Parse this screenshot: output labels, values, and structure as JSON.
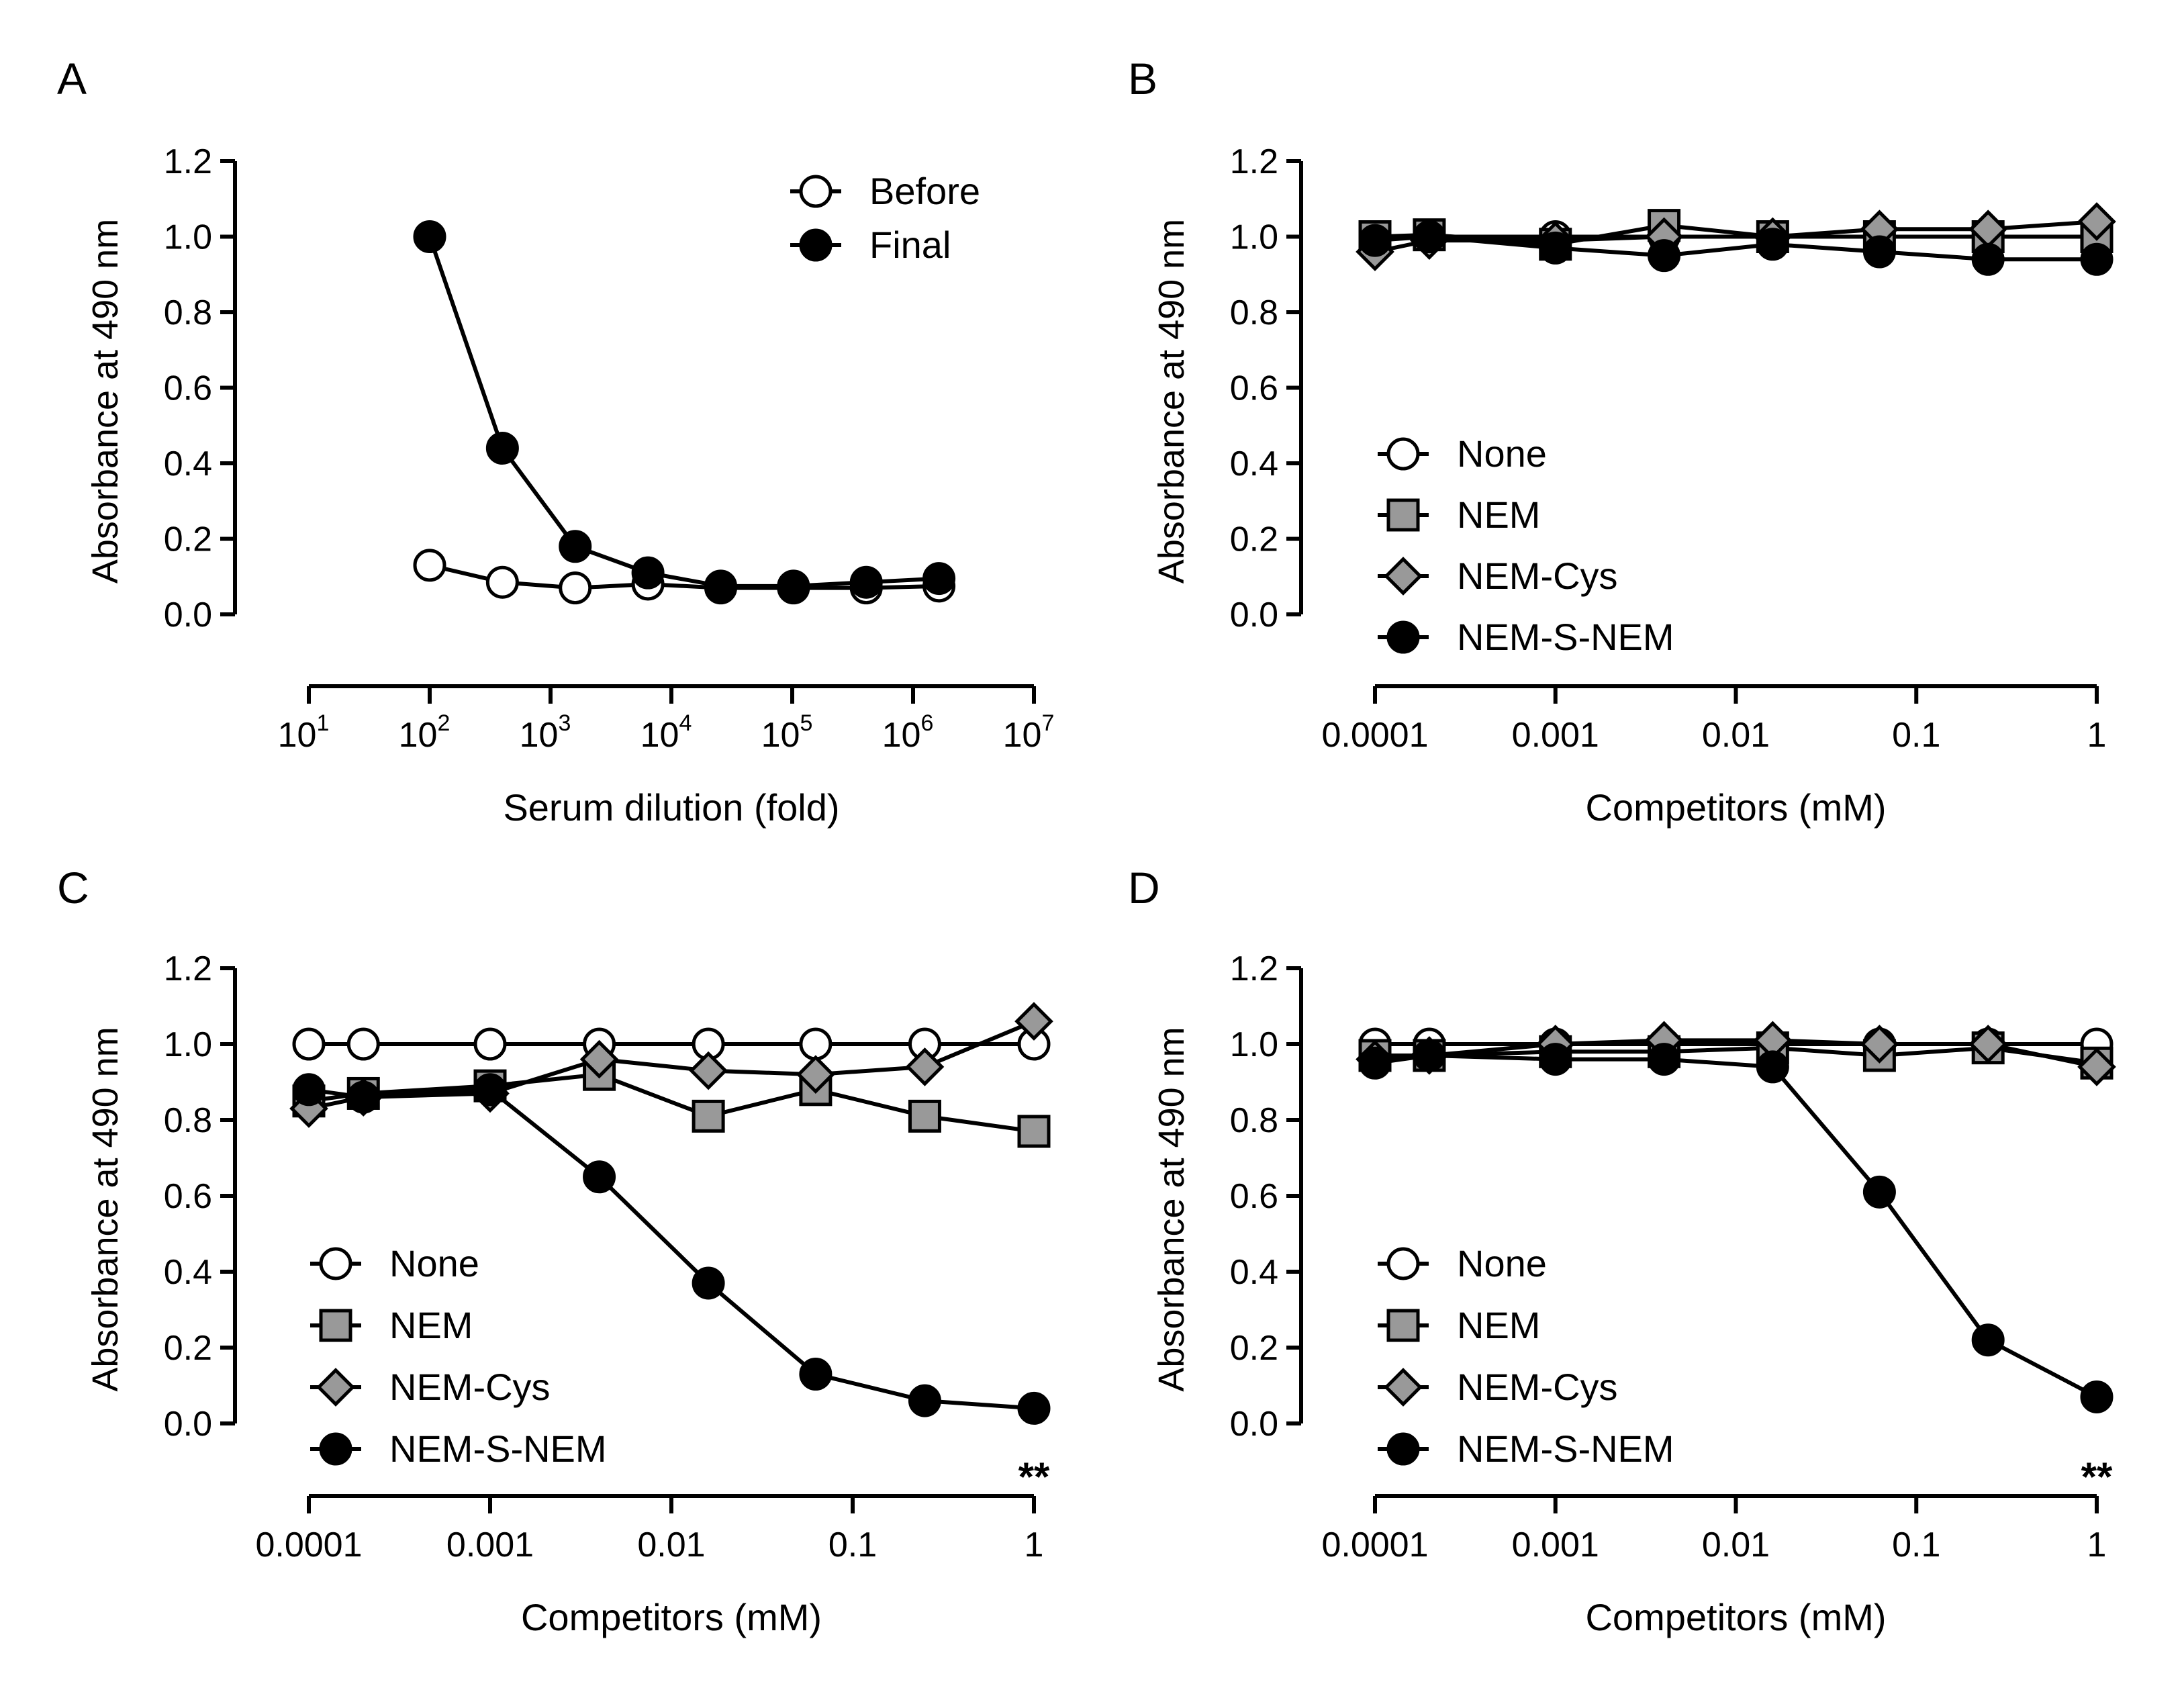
{
  "chart_data": [
    {
      "panel_label": "A",
      "type": "line",
      "xscale": "log",
      "xlabel": "Serum dilution (fold)",
      "ylabel": "Absorbance at 490 nm",
      "xlim": [
        10,
        10000000
      ],
      "ylim": [
        0,
        1.2
      ],
      "xticks": [
        {
          "value": 10,
          "base": "10",
          "exp": "1"
        },
        {
          "value": 100,
          "base": "10",
          "exp": "2"
        },
        {
          "value": 1000,
          "base": "10",
          "exp": "3"
        },
        {
          "value": 10000,
          "base": "10",
          "exp": "4"
        },
        {
          "value": 100000,
          "base": "10",
          "exp": "5"
        },
        {
          "value": 1000000,
          "base": "10",
          "exp": "6"
        },
        {
          "value": 10000000,
          "base": "10",
          "exp": "7"
        }
      ],
      "yticks": [
        "0.0",
        "0.2",
        "0.4",
        "0.6",
        "0.8",
        "1.0",
        "1.2"
      ],
      "legend_position": "top-right",
      "series": [
        {
          "name": "Before",
          "marker": "circle",
          "fill": "#ffffff",
          "x": [
            100,
            400,
            1600,
            6400,
            25600,
            102400,
            409600,
            1638400
          ],
          "y": [
            0.13,
            0.085,
            0.07,
            0.08,
            0.07,
            0.07,
            0.07,
            0.075
          ]
        },
        {
          "name": "Final",
          "marker": "circle",
          "fill": "#000000",
          "x": [
            100,
            400,
            1600,
            6400,
            25600,
            102400,
            409600,
            1638400
          ],
          "y": [
            1.0,
            0.44,
            0.18,
            0.11,
            0.075,
            0.075,
            0.085,
            0.095
          ]
        }
      ]
    },
    {
      "panel_label": "B",
      "type": "line",
      "xscale": "log",
      "xlabel": "Competitors (mM)",
      "ylabel": "Absorbance at 490 nm",
      "xlim": [
        0.0001,
        1
      ],
      "ylim": [
        0,
        1.2
      ],
      "xticks": [
        {
          "value": 0.0001,
          "label": "0.0001"
        },
        {
          "value": 0.001,
          "label": "0.001"
        },
        {
          "value": 0.01,
          "label": "0.01"
        },
        {
          "value": 0.1,
          "label": "0.1"
        },
        {
          "value": 1,
          "label": "1"
        }
      ],
      "yticks": [
        "0.0",
        "0.2",
        "0.4",
        "0.6",
        "0.8",
        "1.0",
        "1.2"
      ],
      "legend_position": "bottom-left",
      "series": [
        {
          "name": "None",
          "marker": "circle",
          "fill": "#ffffff",
          "x": [
            0.0001,
            0.0002,
            0.001,
            0.004,
            0.016,
            0.0625,
            0.25,
            1
          ],
          "y": [
            1.0,
            1.0,
            1.0,
            1.0,
            1.0,
            1.0,
            1.0,
            1.0
          ]
        },
        {
          "name": "NEM",
          "marker": "square",
          "fill": "#999999",
          "x": [
            0.0001,
            0.0002,
            0.001,
            0.004,
            0.016,
            0.0625,
            0.25,
            1
          ],
          "y": [
            1.0,
            1.005,
            0.98,
            1.03,
            1.0,
            1.0,
            1.0,
            1.0
          ]
        },
        {
          "name": "NEM-Cys",
          "marker": "diamond",
          "fill": "#999999",
          "x": [
            0.0001,
            0.0002,
            0.001,
            0.004,
            0.016,
            0.0625,
            0.25,
            1
          ],
          "y": [
            0.96,
            0.99,
            0.99,
            1.0,
            1.0,
            1.02,
            1.02,
            1.04
          ]
        },
        {
          "name": "NEM-S-NEM",
          "marker": "circle",
          "fill": "#000000",
          "x": [
            0.0001,
            0.0002,
            0.001,
            0.004,
            0.016,
            0.0625,
            0.25,
            1
          ],
          "y": [
            0.99,
            1.0,
            0.97,
            0.95,
            0.98,
            0.96,
            0.94,
            0.94
          ]
        }
      ]
    },
    {
      "panel_label": "C",
      "type": "line",
      "xscale": "log",
      "xlabel": "Competitors (mM)",
      "ylabel": "Absorbance at 490 nm",
      "xlim": [
        0.0001,
        1
      ],
      "ylim": [
        0,
        1.2
      ],
      "xticks": [
        {
          "value": 0.0001,
          "label": "0.0001"
        },
        {
          "value": 0.001,
          "label": "0.001"
        },
        {
          "value": 0.01,
          "label": "0.01"
        },
        {
          "value": 0.1,
          "label": "0.1"
        },
        {
          "value": 1,
          "label": "1"
        }
      ],
      "yticks": [
        "0.0",
        "0.2",
        "0.4",
        "0.6",
        "0.8",
        "1.0",
        "1.2"
      ],
      "legend_position": "bottom-left",
      "annotation": "**",
      "series": [
        {
          "name": "None",
          "marker": "circle",
          "fill": "#ffffff",
          "x": [
            0.0001,
            0.0002,
            0.001,
            0.004,
            0.016,
            0.0625,
            0.25,
            1
          ],
          "y": [
            1.0,
            1.0,
            1.0,
            1.0,
            1.0,
            1.0,
            1.0,
            1.0
          ]
        },
        {
          "name": "NEM",
          "marker": "square",
          "fill": "#999999",
          "x": [
            0.0001,
            0.0002,
            0.001,
            0.004,
            0.016,
            0.0625,
            0.25,
            1
          ],
          "y": [
            0.85,
            0.87,
            0.89,
            0.92,
            0.81,
            0.88,
            0.81,
            0.77
          ]
        },
        {
          "name": "NEM-Cys",
          "marker": "diamond",
          "fill": "#999999",
          "x": [
            0.0001,
            0.0002,
            0.001,
            0.004,
            0.016,
            0.0625,
            0.25,
            1
          ],
          "y": [
            0.83,
            0.86,
            0.87,
            0.96,
            0.93,
            0.92,
            0.94,
            1.06
          ]
        },
        {
          "name": "NEM-S-NEM",
          "marker": "circle",
          "fill": "#000000",
          "x": [
            0.0001,
            0.0002,
            0.001,
            0.004,
            0.016,
            0.0625,
            0.25,
            1
          ],
          "y": [
            0.88,
            0.86,
            0.88,
            0.65,
            0.37,
            0.13,
            0.06,
            0.04
          ]
        }
      ]
    },
    {
      "panel_label": "D",
      "type": "line",
      "xscale": "log",
      "xlabel": "Competitors (mM)",
      "ylabel": "Absorbance at 490 nm",
      "xlim": [
        0.0001,
        1
      ],
      "ylim": [
        0,
        1.2
      ],
      "xticks": [
        {
          "value": 0.0001,
          "label": "0.0001"
        },
        {
          "value": 0.001,
          "label": "0.001"
        },
        {
          "value": 0.01,
          "label": "0.01"
        },
        {
          "value": 0.1,
          "label": "0.1"
        },
        {
          "value": 1,
          "label": "1"
        }
      ],
      "yticks": [
        "0.0",
        "0.2",
        "0.4",
        "0.6",
        "0.8",
        "1.0",
        "1.2"
      ],
      "legend_position": "bottom-left",
      "annotation": "**",
      "series": [
        {
          "name": "None",
          "marker": "circle",
          "fill": "#ffffff",
          "x": [
            0.0001,
            0.0002,
            0.001,
            0.004,
            0.016,
            0.0625,
            0.25,
            1
          ],
          "y": [
            1.0,
            1.0,
            1.0,
            1.0,
            1.0,
            1.0,
            1.0,
            1.0
          ]
        },
        {
          "name": "NEM",
          "marker": "square",
          "fill": "#999999",
          "x": [
            0.0001,
            0.0002,
            0.001,
            0.004,
            0.016,
            0.0625,
            0.25,
            1
          ],
          "y": [
            0.97,
            0.97,
            0.98,
            0.98,
            0.99,
            0.97,
            0.99,
            0.95
          ]
        },
        {
          "name": "NEM-Cys",
          "marker": "diamond",
          "fill": "#999999",
          "x": [
            0.0001,
            0.0002,
            0.001,
            0.004,
            0.016,
            0.0625,
            0.25,
            1
          ],
          "y": [
            0.96,
            0.97,
            1.0,
            1.01,
            1.01,
            1.0,
            1.0,
            0.94
          ]
        },
        {
          "name": "NEM-S-NEM",
          "marker": "circle",
          "fill": "#000000",
          "x": [
            0.0001,
            0.0002,
            0.001,
            0.004,
            0.016,
            0.0625,
            0.25,
            1
          ],
          "y": [
            0.95,
            0.97,
            0.96,
            0.96,
            0.94,
            0.61,
            0.22,
            0.07
          ]
        }
      ]
    }
  ]
}
